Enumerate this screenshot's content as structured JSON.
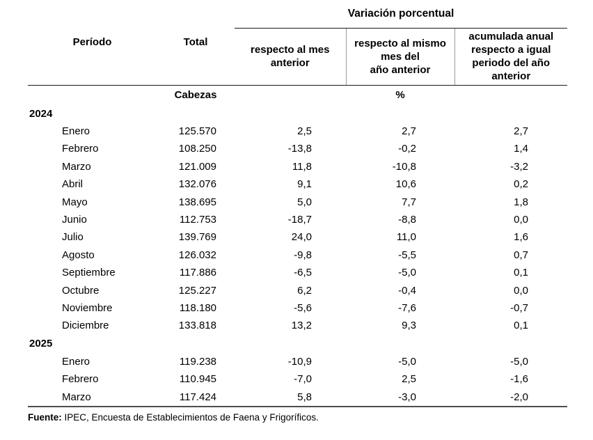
{
  "table": {
    "group_header": "Variación porcentual",
    "columns": {
      "period": "Período",
      "total": "Total",
      "var_prev_month": "respecto al mes\nanterior",
      "var_same_month": "respecto al mismo\nmes del\naño anterior",
      "var_accumulated": "acumulada anual\nrespecto a igual\nperiodo del año\nanterior"
    },
    "units": {
      "total": "Cabezas",
      "percent": "%"
    },
    "groups": [
      {
        "year": "2024",
        "rows": [
          {
            "month": "Enero",
            "total": "125.570",
            "var_prev_month": "2,5",
            "var_same_month": "2,7",
            "var_accumulated": "2,7"
          },
          {
            "month": "Febrero",
            "total": "108.250",
            "var_prev_month": "-13,8",
            "var_same_month": "-0,2",
            "var_accumulated": "1,4"
          },
          {
            "month": "Marzo",
            "total": "121.009",
            "var_prev_month": "11,8",
            "var_same_month": "-10,8",
            "var_accumulated": "-3,2"
          },
          {
            "month": "Abril",
            "total": "132.076",
            "var_prev_month": "9,1",
            "var_same_month": "10,6",
            "var_accumulated": "0,2"
          },
          {
            "month": "Mayo",
            "total": "138.695",
            "var_prev_month": "5,0",
            "var_same_month": "7,7",
            "var_accumulated": "1,8"
          },
          {
            "month": "Junio",
            "total": "112.753",
            "var_prev_month": "-18,7",
            "var_same_month": "-8,8",
            "var_accumulated": "0,0"
          },
          {
            "month": "Julio",
            "total": "139.769",
            "var_prev_month": "24,0",
            "var_same_month": "11,0",
            "var_accumulated": "1,6"
          },
          {
            "month": "Agosto",
            "total": "126.032",
            "var_prev_month": "-9,8",
            "var_same_month": "-5,5",
            "var_accumulated": "0,7"
          },
          {
            "month": "Septiembre",
            "total": "117.886",
            "var_prev_month": "-6,5",
            "var_same_month": "-5,0",
            "var_accumulated": "0,1"
          },
          {
            "month": "Octubre",
            "total": "125.227",
            "var_prev_month": "6,2",
            "var_same_month": "-0,4",
            "var_accumulated": "0,0"
          },
          {
            "month": "Noviembre",
            "total": "118.180",
            "var_prev_month": "-5,6",
            "var_same_month": "-7,6",
            "var_accumulated": "-0,7"
          },
          {
            "month": "Diciembre",
            "total": "133.818",
            "var_prev_month": "13,2",
            "var_same_month": "9,3",
            "var_accumulated": "0,1"
          }
        ]
      },
      {
        "year": "2025",
        "rows": [
          {
            "month": "Enero",
            "total": "119.238",
            "var_prev_month": "-10,9",
            "var_same_month": "-5,0",
            "var_accumulated": "-5,0"
          },
          {
            "month": "Febrero",
            "total": "110.945",
            "var_prev_month": "-7,0",
            "var_same_month": "2,5",
            "var_accumulated": "-1,6"
          },
          {
            "month": "Marzo",
            "total": "117.424",
            "var_prev_month": "5,8",
            "var_same_month": "-3,0",
            "var_accumulated": "-2,0"
          }
        ]
      }
    ]
  },
  "footer": {
    "source_label": "Fuente:",
    "source_text": " IPEC, Encuesta de Establecimientos de Faena y Frigoríficos."
  },
  "colors": {
    "text": "#000000",
    "header_rule": "#1a1a1a",
    "subcolumn_separator": "#9a9a9a",
    "bottom_rule": "#4d4d4d"
  }
}
